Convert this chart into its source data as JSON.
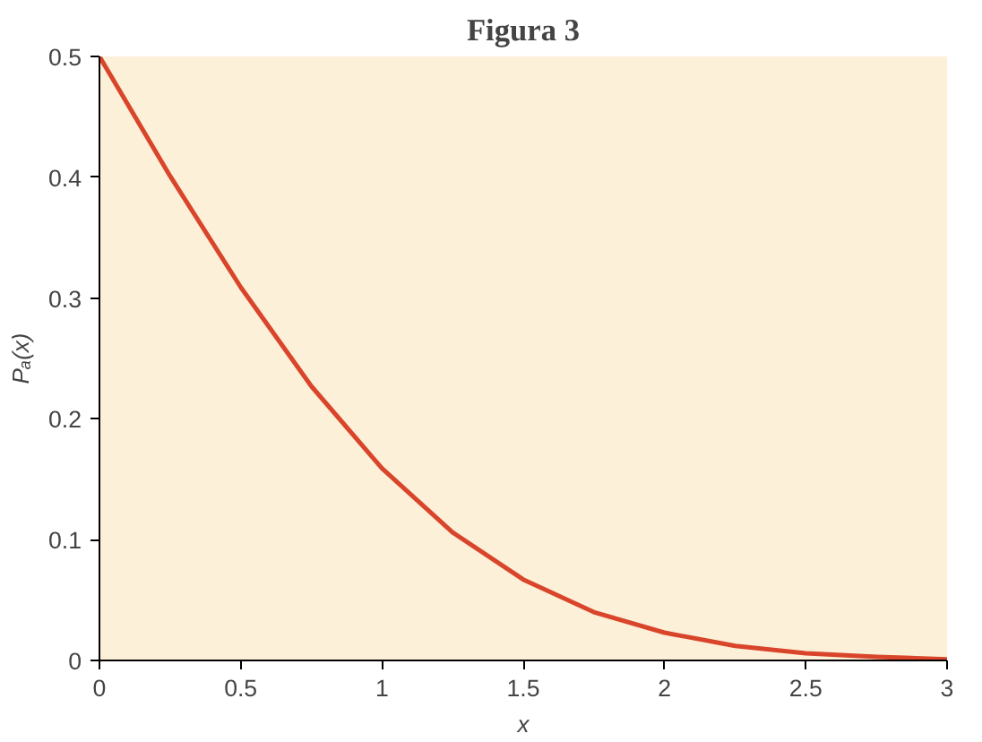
{
  "chart_data": {
    "type": "line",
    "title": "Figura 3",
    "xlabel": "x",
    "ylabel": "Pₐ(x)",
    "x": [
      0,
      0.25,
      0.5,
      0.75,
      1,
      1.25,
      1.5,
      1.75,
      2,
      2.25,
      2.5,
      2.75,
      3
    ],
    "series": [
      {
        "color": "#d9452b",
        "values": [
          0.5,
          0.401,
          0.309,
          0.227,
          0.159,
          0.106,
          0.067,
          0.04,
          0.023,
          0.012,
          0.006,
          0.003,
          0.001
        ]
      }
    ],
    "xlim": [
      0,
      3
    ],
    "ylim": [
      0,
      0.5
    ],
    "xticks": [
      0,
      0.5,
      1,
      1.5,
      2,
      2.5,
      3
    ],
    "yticks": [
      0,
      0.1,
      0.2,
      0.3,
      0.4,
      0.5
    ],
    "grid": false,
    "marker": "none",
    "line_style": "solid"
  }
}
